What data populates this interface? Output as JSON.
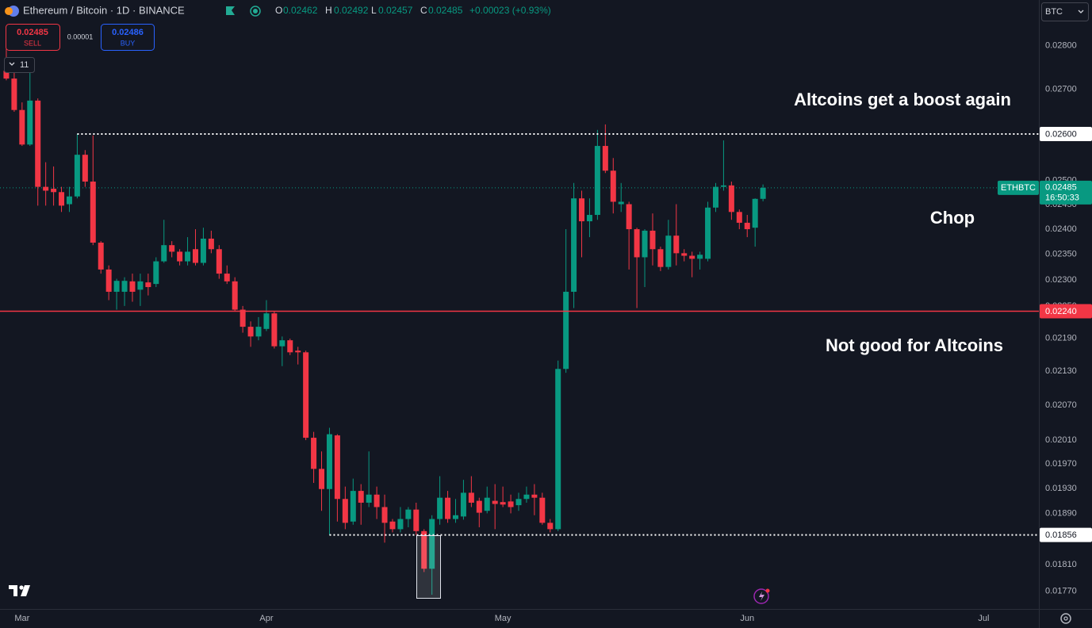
{
  "chart_data": {
    "type": "candlestick",
    "title": "Ethereum / Bitcoin · 1D · BINANCE",
    "ohlc_keys": [
      "O",
      "H",
      "L",
      "C"
    ],
    "change": "+0.00023 (+0.93%)",
    "sell": {
      "price": 0.02485,
      "label": "SELL"
    },
    "spread": 1e-05,
    "buy": {
      "price": 0.02486,
      "label": "BUY"
    },
    "badge": "11",
    "currency": "BTC",
    "log_scale": true,
    "grid": false,
    "up_color": "#089981",
    "down_color": "#f23645",
    "open": [
      0.02742,
      0.02724,
      0.02653,
      0.02577,
      0.02674,
      0.02487,
      0.02483,
      0.02476,
      0.02451,
      0.02467,
      0.02555,
      0.02498,
      0.02373,
      0.0232,
      0.02277,
      0.02277,
      0.02297,
      0.02281,
      0.02295,
      0.02292,
      0.02336,
      0.02368,
      0.02355,
      0.02336,
      0.0236,
      0.02333,
      0.02381,
      0.0236,
      0.02312,
      0.02297,
      0.02243,
      0.02211,
      0.02193,
      0.02207,
      0.02236,
      0.02175,
      0.02186,
      0.02167,
      0.02164,
      0.02014,
      0.01962,
      0.01929,
      0.02018,
      0.01913,
      0.01877,
      0.01926,
      0.01907,
      0.0192,
      0.019,
      0.01877,
      0.01865,
      0.01881,
      0.01896,
      0.01862,
      0.01804,
      0.01881,
      0.01915,
      0.01881,
      0.01885,
      0.01923,
      0.0191,
      0.01894,
      0.0191,
      0.01908,
      0.01909,
      0.01903,
      0.01913,
      0.0192,
      0.01915,
      0.01875,
      0.01865,
      0.02134,
      0.02277,
      0.02463,
      0.02416,
      0.02429,
      0.02574,
      0.02521,
      0.02451,
      0.02451,
      0.024,
      0.02344,
      0.02397,
      0.0236,
      0.02325,
      0.02387,
      0.02352,
      0.02347,
      0.02341,
      0.02341,
      0.02444,
      0.02487,
      0.0249,
      0.02435,
      0.02413,
      0.02403,
      0.02462
    ],
    "high": [
      0.02796,
      0.02738,
      0.0267,
      0.02738,
      0.02679,
      0.02539,
      0.0253,
      0.02487,
      0.02487,
      0.026,
      0.02565,
      0.02597,
      0.02376,
      0.02328,
      0.02302,
      0.02305,
      0.02312,
      0.02312,
      0.02312,
      0.02344,
      0.02419,
      0.02376,
      0.0236,
      0.02384,
      0.024,
      0.02403,
      0.02397,
      0.02368,
      0.02328,
      0.02305,
      0.0225,
      0.02221,
      0.02229,
      0.02261,
      0.0224,
      0.02193,
      0.02189,
      0.02174,
      0.02167,
      0.02024,
      0.01991,
      0.02031,
      0.0202,
      0.01933,
      0.01946,
      0.01937,
      0.01991,
      0.01933,
      0.0192,
      0.01881,
      0.019,
      0.019,
      0.01907,
      0.01865,
      0.01887,
      0.0195,
      0.01926,
      0.01913,
      0.01944,
      0.0195,
      0.01915,
      0.01933,
      0.01937,
      0.01933,
      0.0192,
      0.01923,
      0.01933,
      0.01937,
      0.01923,
      0.01881,
      0.02149,
      0.024,
      0.02495,
      0.02479,
      0.02463,
      0.02609,
      0.02621,
      0.02548,
      0.02495,
      0.02456,
      0.02403,
      0.024,
      0.02432,
      0.02365,
      0.02419,
      0.02451,
      0.0236,
      0.02355,
      0.02355,
      0.02456,
      0.02495,
      0.02586,
      0.02498,
      0.0244,
      0.02429,
      0.02463,
      0.02492
    ],
    "low": [
      0.0272,
      0.02649,
      0.02574,
      0.02574,
      0.02448,
      0.02448,
      0.02448,
      0.02435,
      0.02435,
      0.02463,
      0.02487,
      0.02368,
      0.02312,
      0.02261,
      0.02243,
      0.0225,
      0.02258,
      0.0225,
      0.0227,
      0.02286,
      0.02333,
      0.02344,
      0.02328,
      0.02328,
      0.02328,
      0.02328,
      0.02352,
      0.02302,
      0.02292,
      0.0224,
      0.022,
      0.02174,
      0.02186,
      0.02203,
      0.02171,
      0.02139,
      0.02159,
      0.02142,
      0.0201,
      0.01939,
      0.01894,
      0.01856,
      0.01877,
      0.01865,
      0.01872,
      0.01872,
      0.019,
      0.01881,
      0.01844,
      0.0186,
      0.0186,
      0.01868,
      0.01856,
      0.01799,
      0.01765,
      0.01872,
      0.01875,
      0.01875,
      0.0188,
      0.019,
      0.01868,
      0.0189,
      0.01865,
      0.019,
      0.0189,
      0.01894,
      0.01907,
      0.01887,
      0.01872,
      0.0186,
      0.01862,
      0.02127,
      0.02246,
      0.02344,
      0.02384,
      0.02419,
      0.02516,
      0.02432,
      0.02435,
      0.0232,
      0.02246,
      0.02286,
      0.02328,
      0.02317,
      0.0232,
      0.02328,
      0.02336,
      0.02305,
      0.0232,
      0.02336,
      0.02435,
      0.02479,
      0.02419,
      0.024,
      0.02384,
      0.02365,
      0.02457
    ],
    "close": [
      0.02724,
      0.02653,
      0.02577,
      0.02674,
      0.02487,
      0.02479,
      0.02476,
      0.02448,
      0.02467,
      0.02555,
      0.02498,
      0.02373,
      0.0232,
      0.02277,
      0.02298,
      0.02298,
      0.02277,
      0.02297,
      0.02286,
      0.02336,
      0.02368,
      0.02355,
      0.02336,
      0.02355,
      0.02333,
      0.02381,
      0.0236,
      0.02312,
      0.02297,
      0.02243,
      0.02211,
      0.02193,
      0.02211,
      0.02236,
      0.02175,
      0.02186,
      0.02164,
      0.02164,
      0.02014,
      0.01962,
      0.01929,
      0.0202,
      0.01913,
      0.01875,
      0.01926,
      0.01907,
      0.0192,
      0.019,
      0.01875,
      0.01865,
      0.01881,
      0.01896,
      0.01862,
      0.01804,
      0.01881,
      0.01915,
      0.01881,
      0.01887,
      0.01923,
      0.01907,
      0.01891,
      0.01915,
      0.01905,
      0.01904,
      0.019,
      0.01913,
      0.0192,
      0.01915,
      0.01875,
      0.01865,
      0.02134,
      0.02277,
      0.02463,
      0.02416,
      0.02429,
      0.02574,
      0.02521,
      0.02456,
      0.02456,
      0.024,
      0.02344,
      0.02397,
      0.0236,
      0.02325,
      0.02387,
      0.02352,
      0.02347,
      0.02341,
      0.02349,
      0.02444,
      0.02487,
      0.0249,
      0.02435,
      0.02413,
      0.024,
      0.02462,
      0.02485
    ],
    "xlim": [
      -0.8,
      131
    ],
    "xticks": [
      {
        "value": 2,
        "label": "Mar"
      },
      {
        "value": 33,
        "label": "Apr"
      },
      {
        "value": 63,
        "label": "May"
      },
      {
        "value": 94,
        "label": "Jun"
      },
      {
        "value": 124,
        "label": "Jul"
      }
    ],
    "ylim": [
      0.01744,
      0.0291
    ],
    "yticks": [
      {
        "value": 0.028,
        "label": "0.02800"
      },
      {
        "value": 0.027,
        "label": "0.02700"
      },
      {
        "value": 0.025,
        "label": "0.02500"
      },
      {
        "value": 0.0245,
        "label": "0.02450"
      },
      {
        "value": 0.024,
        "label": "0.02400"
      },
      {
        "value": 0.0235,
        "label": "0.02350"
      },
      {
        "value": 0.023,
        "label": "0.02300"
      },
      {
        "value": 0.0225,
        "label": "0.02250"
      },
      {
        "value": 0.0219,
        "label": "0.02190"
      },
      {
        "value": 0.0213,
        "label": "0.02130"
      },
      {
        "value": 0.0207,
        "label": "0.02070"
      },
      {
        "value": 0.0201,
        "label": "0.02010"
      },
      {
        "value": 0.0197,
        "label": "0.01970"
      },
      {
        "value": 0.0193,
        "label": "0.01930"
      },
      {
        "value": 0.0189,
        "label": "0.01890"
      },
      {
        "value": 0.0181,
        "label": "0.01810"
      },
      {
        "value": 0.0177,
        "label": "0.01770"
      }
    ],
    "levels": [
      {
        "value": 0.026,
        "label": "0.02600",
        "style": "dotted",
        "color": "#ffffff",
        "from": 9
      },
      {
        "value": 0.0224,
        "label": "0.02240",
        "style": "solid",
        "color": "#f23645"
      },
      {
        "value": 0.01856,
        "label": "0.01856",
        "style": "dotted",
        "color": "#ffffff",
        "from": 41
      }
    ],
    "last": {
      "value": 0.02485,
      "symbol": "ETHBTC",
      "countdown": "16:50:33",
      "color": "#089981"
    },
    "annotations": [
      "Altcoins get a boost again",
      "Chop",
      "Not good for Altcoins"
    ]
  }
}
